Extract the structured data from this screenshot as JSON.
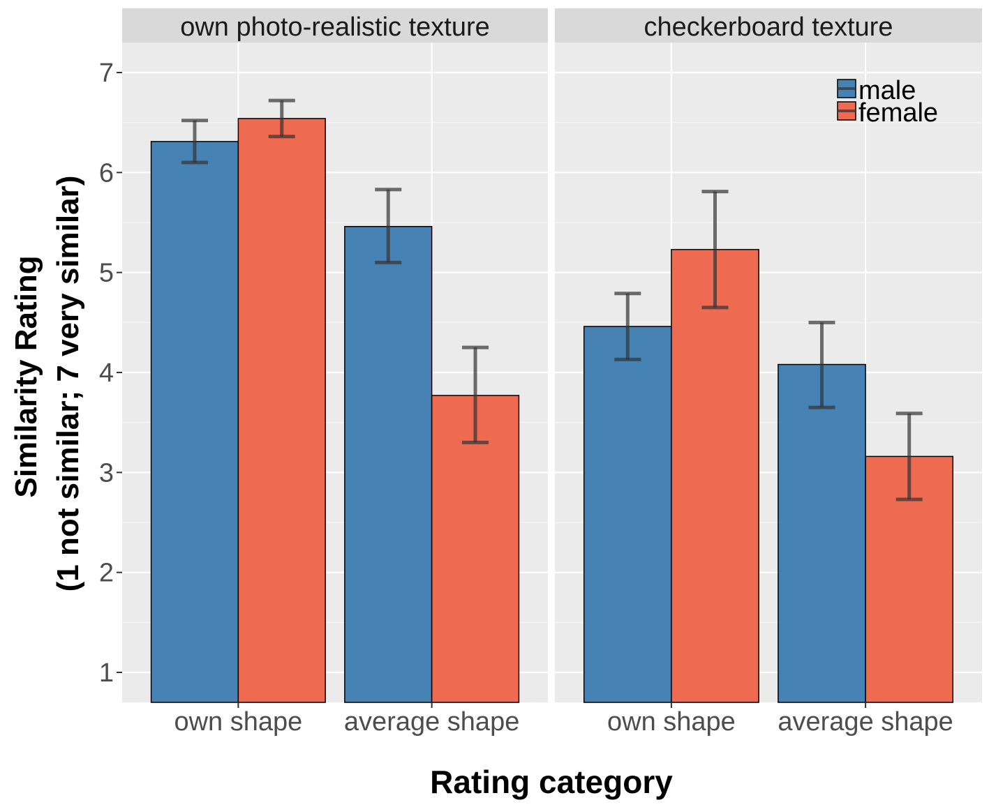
{
  "chart_data": {
    "type": "bar",
    "ylabel_line1": "Similarity Rating",
    "ylabel_line2": "(1 not similar; 7 very similar)",
    "xlabel": "Rating category",
    "ylim": [
      0.7,
      7.3
    ],
    "yticks": [
      1,
      2,
      3,
      4,
      5,
      6,
      7
    ],
    "categories": [
      "own shape",
      "average shape"
    ],
    "legend": {
      "position": "top-right",
      "entries": [
        {
          "name": "male",
          "color": "#4682b4"
        },
        {
          "name": "female",
          "color": "#ee6a50"
        }
      ]
    },
    "panels": [
      {
        "title": "own photo-realistic texture",
        "series": [
          {
            "name": "male",
            "values": [
              6.31,
              5.46
            ],
            "err_low": [
              6.1,
              5.1
            ],
            "err_high": [
              6.52,
              5.83
            ]
          },
          {
            "name": "female",
            "values": [
              6.54,
              3.77
            ],
            "err_low": [
              6.36,
              3.3
            ],
            "err_high": [
              6.72,
              4.25
            ]
          }
        ]
      },
      {
        "title": "checkerboard texture",
        "series": [
          {
            "name": "male",
            "values": [
              4.46,
              4.08
            ],
            "err_low": [
              4.13,
              3.65
            ],
            "err_high": [
              4.79,
              4.5
            ]
          },
          {
            "name": "female",
            "values": [
              5.23,
              3.16
            ],
            "err_low": [
              4.65,
              2.73
            ],
            "err_high": [
              5.81,
              3.59
            ]
          }
        ]
      }
    ]
  }
}
